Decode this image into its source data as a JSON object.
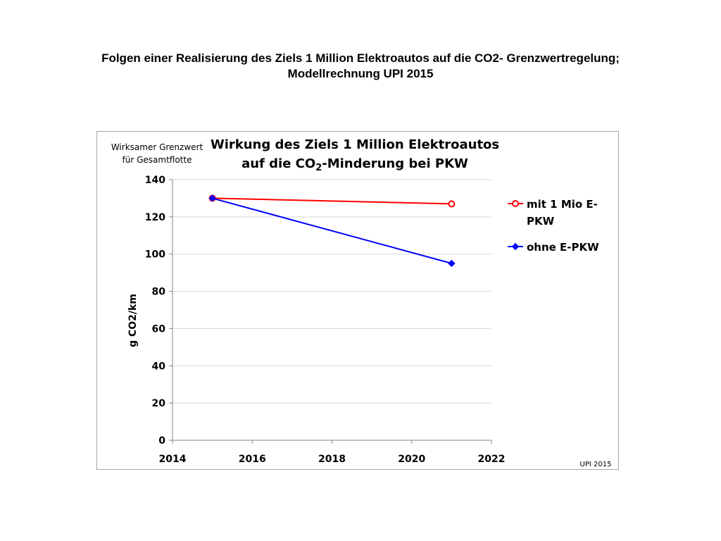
{
  "page": {
    "title_line1": "Folgen einer Realisierung des Ziels 1 Million Elektroautos auf die CO2- Grenzwertregelung;",
    "title_line2": "Modellrechnung UPI 2015"
  },
  "chart_data": {
    "type": "line",
    "title_line1": "Wirkung des Ziels 1 Million Elektroautos",
    "title_line2_pre": "auf die CO",
    "title_line2_sub": "2",
    "title_line2_post": "-Minderung bei PKW",
    "corner_label_line1": "Wirksamer Grenzwert",
    "corner_label_line2": "für Gesamtflotte",
    "ylabel": "g CO2/km",
    "xlabel": "",
    "xlim": [
      2014,
      2022
    ],
    "ylim": [
      0,
      140
    ],
    "xticks": [
      2014,
      2016,
      2018,
      2020,
      2022
    ],
    "yticks": [
      0,
      20,
      40,
      60,
      80,
      100,
      120,
      140
    ],
    "grid": "horizontal",
    "legend_position": "right",
    "series": [
      {
        "name_line1": "mit 1 Mio E-",
        "name_line2": "PKW",
        "color": "#ff0000",
        "marker": "circle-open",
        "points": [
          {
            "x": 2015,
            "y": 130
          },
          {
            "x": 2021,
            "y": 127
          }
        ]
      },
      {
        "name_line1": "ohne E-PKW",
        "color": "#0000ff",
        "marker": "diamond",
        "points": [
          {
            "x": 2015,
            "y": 130
          },
          {
            "x": 2021,
            "y": 95
          }
        ]
      }
    ],
    "credit": "UPI 2015"
  }
}
